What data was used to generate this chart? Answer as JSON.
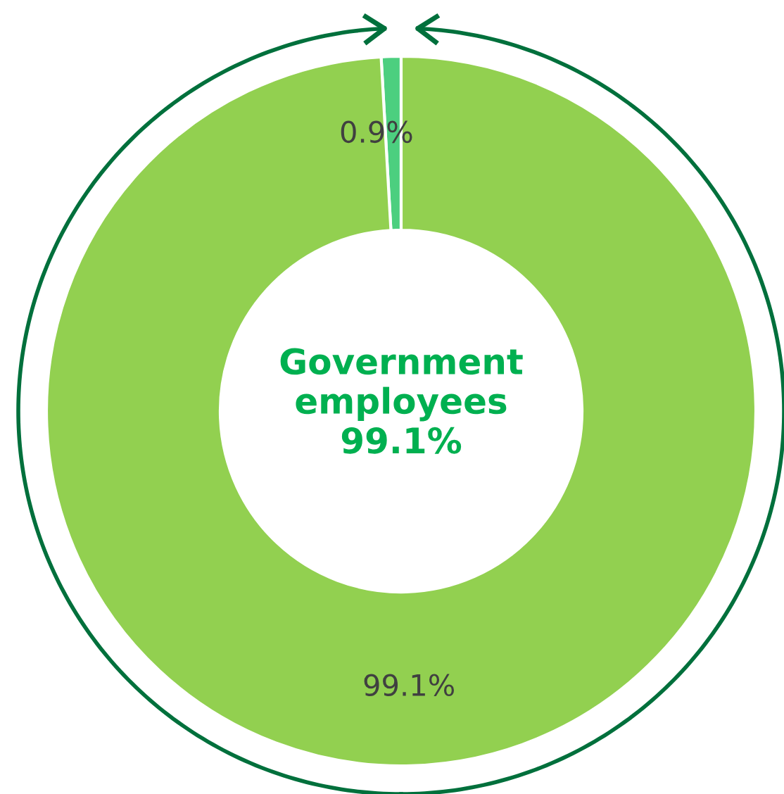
{
  "chart_data": {
    "type": "donut",
    "categories": [
      null,
      null
    ],
    "values": [
      0.9,
      99.1
    ],
    "colors": [
      "#4ccf7f",
      "#92d050"
    ],
    "value_labels": [
      "0.9%",
      "99.1%"
    ],
    "annotations": [
      "Government\nemployees\n99.1%"
    ],
    "legend": false
  }
}
